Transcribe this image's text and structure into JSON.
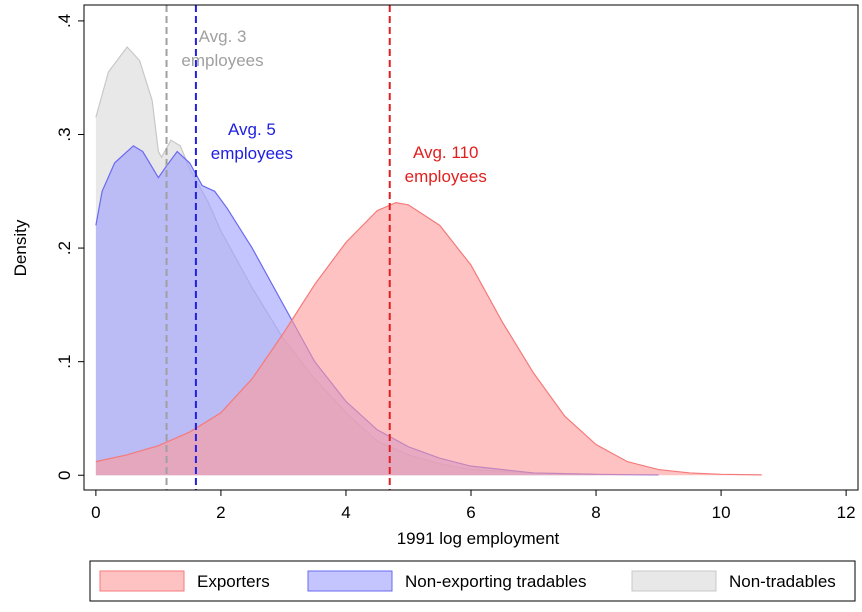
{
  "chart_data": {
    "type": "area",
    "x_label": "1991 log employment",
    "y_label": "Density",
    "xlim": [
      -0.19,
      12.19
    ],
    "ylim": [
      -0.013,
      0.414
    ],
    "xticks": [
      0,
      2,
      4,
      6,
      8,
      10,
      12
    ],
    "yticks": [
      {
        "value": 0,
        "label": "0"
      },
      {
        "value": 0.1,
        "label": ".1"
      },
      {
        "value": 0.2,
        "label": ".2"
      },
      {
        "value": 0.3,
        "label": ".3"
      },
      {
        "value": 0.4,
        "label": ".4"
      }
    ],
    "legend": "bottom",
    "series": [
      {
        "name": "Exporters",
        "color": "#f47a7a",
        "fill": "#ff9a9a",
        "x": [
          0,
          0.5,
          1,
          1.5,
          2,
          2.5,
          3,
          3.5,
          4,
          4.5,
          4.8,
          5,
          5.5,
          6,
          6.5,
          7,
          7.5,
          8,
          8.5,
          9,
          9.5,
          10,
          10.65
        ],
        "values": [
          0.012,
          0.018,
          0.026,
          0.038,
          0.055,
          0.085,
          0.125,
          0.168,
          0.205,
          0.233,
          0.24,
          0.238,
          0.22,
          0.185,
          0.135,
          0.09,
          0.052,
          0.027,
          0.012,
          0.005,
          0.002,
          0.0008,
          0.0003
        ]
      },
      {
        "name": "Non-exporting tradables",
        "color": "#6a6af0",
        "fill": "#9c9cff",
        "x": [
          0,
          0.1,
          0.3,
          0.6,
          0.75,
          1.0,
          1.1,
          1.3,
          1.5,
          1.7,
          1.9,
          2.1,
          2.5,
          3,
          3.5,
          4,
          4.5,
          5,
          5.5,
          6,
          7,
          8,
          9
        ],
        "values": [
          0.22,
          0.25,
          0.275,
          0.29,
          0.285,
          0.262,
          0.27,
          0.285,
          0.275,
          0.255,
          0.25,
          0.235,
          0.2,
          0.15,
          0.1,
          0.065,
          0.04,
          0.025,
          0.015,
          0.008,
          0.002,
          0.0008,
          0.0003
        ]
      },
      {
        "name": "Non-tradables",
        "color": "#c8c8c8",
        "fill": "#d9d9d9",
        "x": [
          0,
          0.2,
          0.5,
          0.7,
          0.9,
          1.0,
          1.05,
          1.2,
          1.35,
          1.5,
          1.8,
          2.0,
          2.5,
          3,
          3.5,
          4,
          4.5,
          5,
          5.5,
          6,
          7,
          8
        ],
        "values": [
          0.315,
          0.355,
          0.377,
          0.365,
          0.33,
          0.285,
          0.28,
          0.295,
          0.29,
          0.27,
          0.24,
          0.215,
          0.165,
          0.12,
          0.085,
          0.055,
          0.03,
          0.018,
          0.01,
          0.005,
          0.002,
          0.001
        ]
      }
    ],
    "reference_lines": [
      {
        "x": 1.13,
        "color": "#a0a0a0",
        "label": [
          "Avg. 3",
          "employees"
        ]
      },
      {
        "x": 1.6,
        "color": "#2020e0",
        "label": [
          "Avg. 5",
          "employees"
        ]
      },
      {
        "x": 4.7,
        "color": "#e02020",
        "label": [
          "Avg. 110",
          "employees"
        ]
      }
    ]
  }
}
